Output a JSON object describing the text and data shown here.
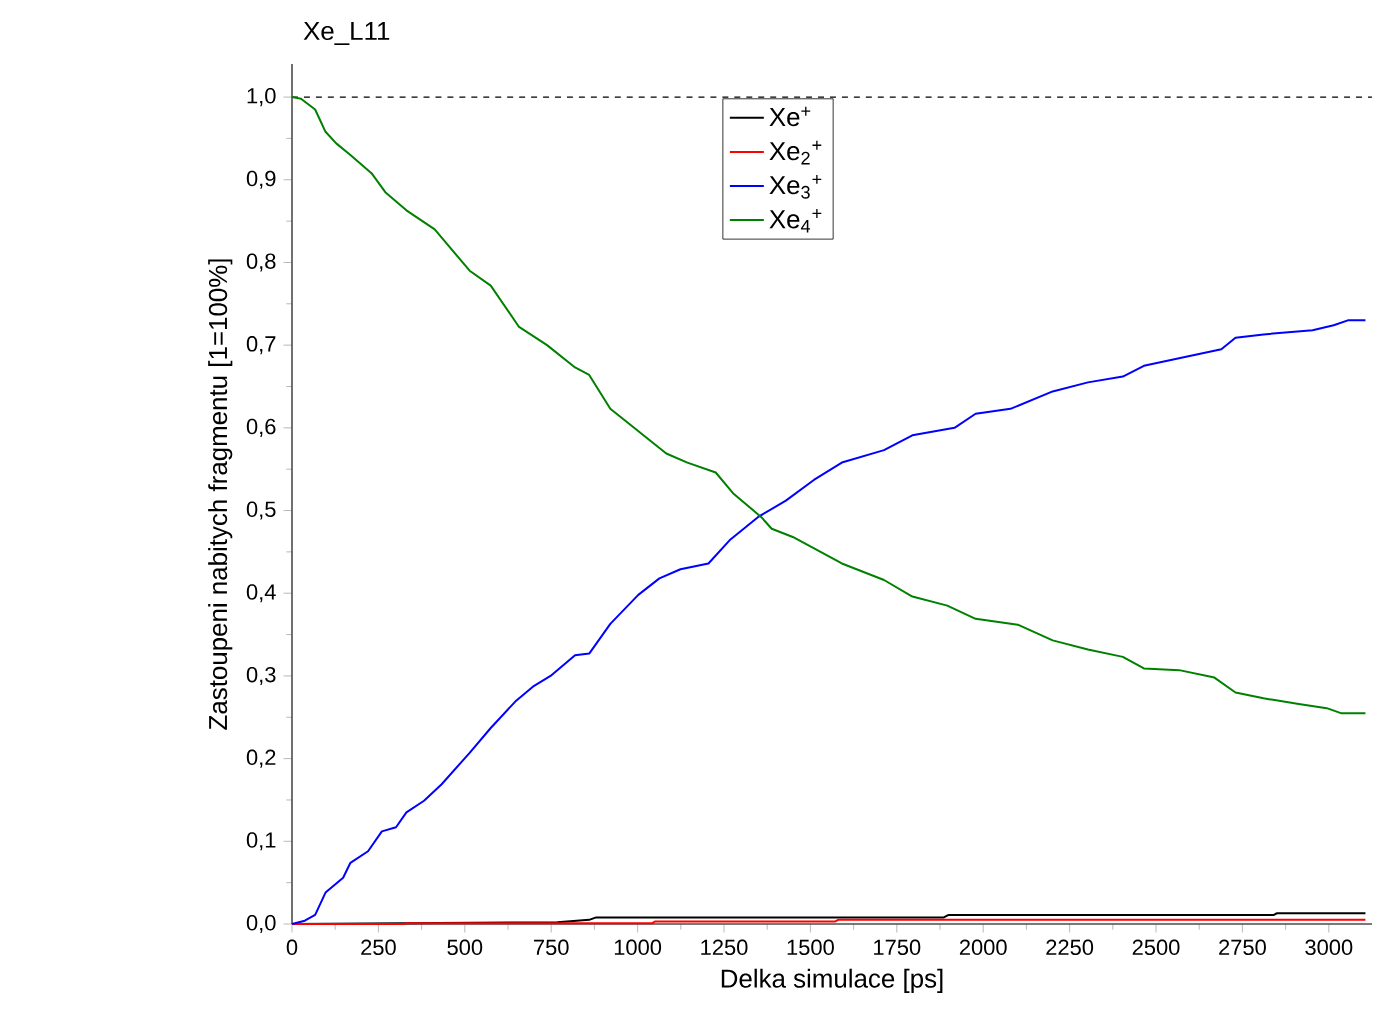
{
  "chart_data": {
    "type": "line",
    "title": "Xe_L11",
    "xlabel": "Delka simulace [ps]",
    "ylabel": "Zastoupeni nabitych fragmentu [1=100%]",
    "xlim": [
      0,
      3125
    ],
    "ylim": [
      0,
      1.04
    ],
    "xticks": [
      0,
      250,
      500,
      750,
      1000,
      1250,
      1500,
      1750,
      2000,
      2250,
      2500,
      2750,
      3000
    ],
    "yticks": [
      {
        "value": 0,
        "label": "0,0"
      },
      {
        "value": 0.1,
        "label": "0,1"
      },
      {
        "value": 0.2,
        "label": "0,2"
      },
      {
        "value": 0.3,
        "label": "0,3"
      },
      {
        "value": 0.4,
        "label": "0,4"
      },
      {
        "value": 0.5,
        "label": "0,5"
      },
      {
        "value": 0.6,
        "label": "0,6"
      },
      {
        "value": 0.7,
        "label": "0,7"
      },
      {
        "value": 0.8,
        "label": "0,8"
      },
      {
        "value": 0.9,
        "label": "0,9"
      },
      {
        "value": 1.0,
        "label": "1,0"
      }
    ],
    "legend": "top",
    "line_style": "solid",
    "ref_lines": [
      {
        "axis": "y",
        "value": 1.0,
        "color": "#000000",
        "line_style": "dashed"
      }
    ],
    "series": [
      {
        "name": "Xe$^{+}$",
        "color": "#000000",
        "x": [
          0,
          321,
          768,
          860,
          880,
          1886,
          1900,
          2841,
          2850,
          3106
        ],
        "values": [
          0,
          0.001,
          0.002,
          0.005,
          0.008,
          0.008,
          0.011,
          0.011,
          0.013,
          0.013
        ]
      },
      {
        "name": "Xe$_{2}$$^{+}$",
        "color": "#ff0000",
        "x": [
          0,
          321,
          330,
          1043,
          1050,
          1571,
          1580,
          3106
        ],
        "values": [
          0,
          0,
          0.001,
          0.001,
          0.003,
          0.003,
          0.005,
          0.005
        ]
      },
      {
        "name": "Xe$_{3}$$^{+}$",
        "color": "#0000ff",
        "x": [
          0,
          37,
          67,
          97,
          148,
          169,
          220,
          260,
          301,
          331,
          382,
          433,
          514,
          575,
          646,
          697,
          748,
          819,
          860,
          921,
          1002,
          1063,
          1124,
          1205,
          1266,
          1348,
          1429,
          1510,
          1591,
          1713,
          1795,
          1917,
          1978,
          2079,
          2201,
          2303,
          2404,
          2465,
          2587,
          2689,
          2730,
          2811,
          2953,
          3014,
          3055,
          3106
        ],
        "values": [
          0,
          0.004,
          0.011,
          0.038,
          0.056,
          0.074,
          0.088,
          0.112,
          0.117,
          0.135,
          0.149,
          0.169,
          0.207,
          0.237,
          0.269,
          0.287,
          0.3,
          0.325,
          0.327,
          0.363,
          0.398,
          0.418,
          0.429,
          0.436,
          0.464,
          0.492,
          0.512,
          0.537,
          0.558,
          0.573,
          0.591,
          0.6,
          0.617,
          0.623,
          0.644,
          0.655,
          0.662,
          0.675,
          0.686,
          0.695,
          0.709,
          0.713,
          0.718,
          0.724,
          0.73,
          0.73
        ]
      },
      {
        "name": "Xe$_{4}$$^{+}$",
        "color": "#008000",
        "x": [
          0,
          26,
          67,
          97,
          128,
          169,
          230,
          270,
          331,
          413,
          514,
          575,
          657,
          738,
          819,
          860,
          921,
          1002,
          1083,
          1144,
          1226,
          1276,
          1358,
          1388,
          1449,
          1591,
          1713,
          1795,
          1896,
          1978,
          2100,
          2201,
          2303,
          2404,
          2465,
          2567,
          2669,
          2730,
          2811,
          2913,
          2994,
          3035,
          3106
        ],
        "values": [
          1.0,
          0.998,
          0.985,
          0.958,
          0.944,
          0.93,
          0.908,
          0.885,
          0.863,
          0.84,
          0.79,
          0.772,
          0.722,
          0.7,
          0.673,
          0.664,
          0.623,
          0.596,
          0.569,
          0.558,
          0.546,
          0.521,
          0.492,
          0.478,
          0.468,
          0.436,
          0.416,
          0.396,
          0.385,
          0.369,
          0.362,
          0.343,
          0.332,
          0.323,
          0.309,
          0.307,
          0.298,
          0.28,
          0.273,
          0.266,
          0.261,
          0.255,
          0.255
        ]
      }
    ]
  }
}
